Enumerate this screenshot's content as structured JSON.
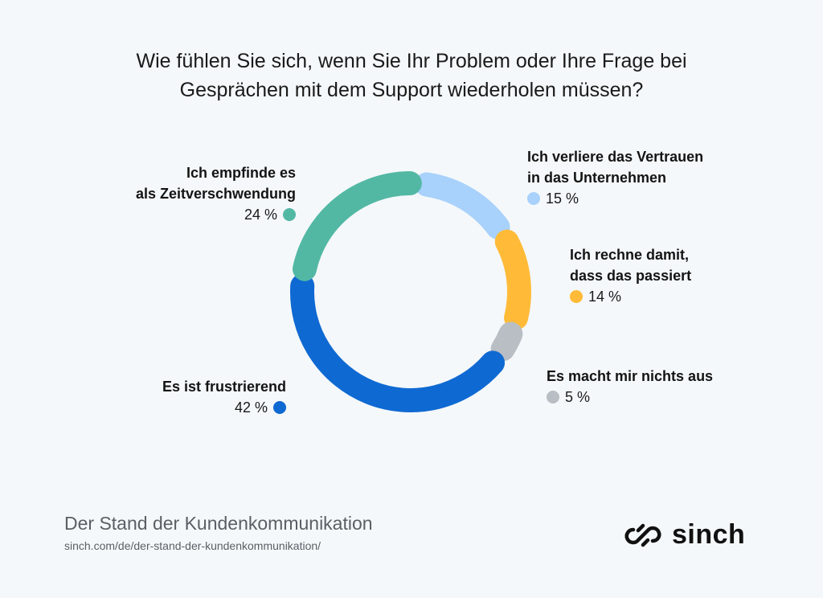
{
  "title_lines": [
    "Wie fühlen Sie sich, wenn Sie Ihr Problem oder Ihre Frage bei",
    "Gesprächen mit dem Support wiederholen müssen?"
  ],
  "chart_data": {
    "type": "pie",
    "variant": "donut",
    "title": "Wie fühlen Sie sich, wenn Sie Ihr Problem oder Ihre Frage bei Gesprächen mit dem Support wiederholen müssen?",
    "unit": "%",
    "slices": [
      {
        "label_lines": [
          "Ich verliere das Vertrauen",
          "in das Unternehmen"
        ],
        "value": 15,
        "display": "15 %",
        "color": "#a8d1fb"
      },
      {
        "label_lines": [
          "Ich rechne damit,",
          "dass das passiert"
        ],
        "value": 14,
        "display": "14 %",
        "color": "#ffbb38"
      },
      {
        "label_lines": [
          "Es macht mir nichts aus"
        ],
        "value": 5,
        "display": "5 %",
        "color": "#b8bec4"
      },
      {
        "label_lines": [
          "Es ist frustrierend"
        ],
        "value": 42,
        "display": "42 %",
        "color": "#0f69d2"
      },
      {
        "label_lines": [
          "Ich empfinde es",
          "als Zeitverschwendung"
        ],
        "value": 24,
        "display": "24 %",
        "color": "#52b8a4"
      }
    ],
    "start_angle_deg": 0,
    "direction": "clockwise"
  },
  "footer": {
    "title": "Der Stand der Kundenkommunikation",
    "url": "sinch.com/de/der-stand-der-kundenkommunikation/",
    "logo_text": "sinch"
  }
}
